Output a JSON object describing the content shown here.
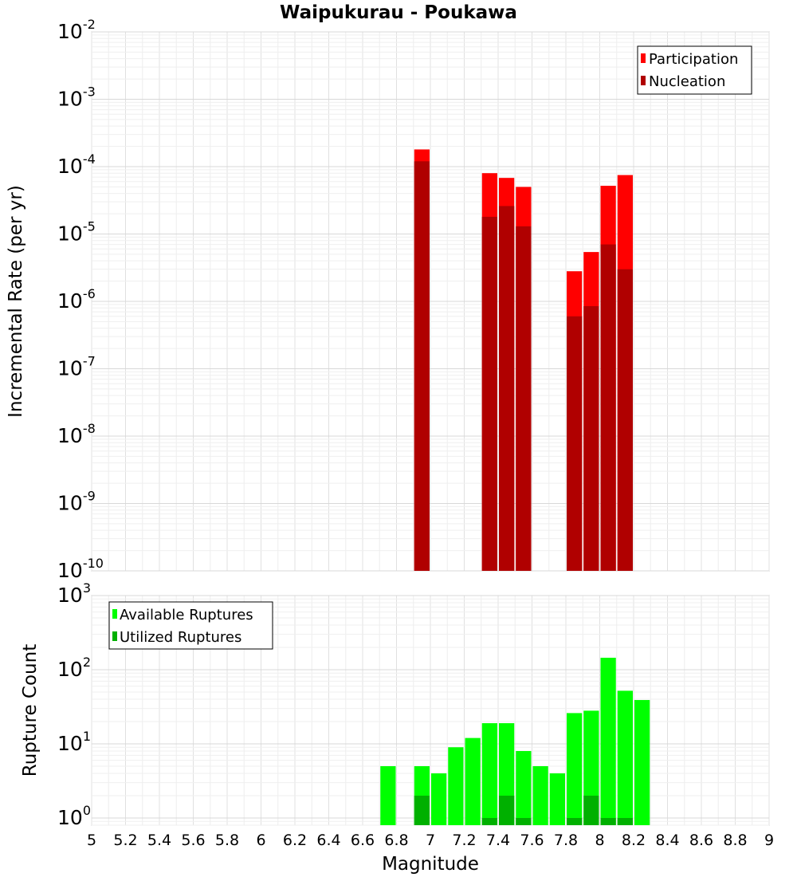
{
  "chart_data": {
    "title": "Waipukurau - Poukawa",
    "xlabel": "Magnitude",
    "x_ticks": [
      "5",
      "5.2",
      "5.4",
      "5.6",
      "5.8",
      "6",
      "6.2",
      "6.4",
      "6.6",
      "6.8",
      "7",
      "7.2",
      "7.4",
      "7.6",
      "7.8",
      "8",
      "8.2",
      "8.4",
      "8.6",
      "8.8",
      "9"
    ],
    "xlim": [
      5,
      9
    ],
    "bar_width": 0.1,
    "panels": [
      {
        "type": "bar",
        "ylabel": "Incremental Rate (per yr)",
        "yscale": "log",
        "ylim": [
          1e-10,
          0.01
        ],
        "y_ticks": [
          {
            "base": "10",
            "exp": "-2"
          },
          {
            "base": "10",
            "exp": "-3"
          },
          {
            "base": "10",
            "exp": "-4"
          },
          {
            "base": "10",
            "exp": "-5"
          },
          {
            "base": "10",
            "exp": "-6"
          },
          {
            "base": "10",
            "exp": "-7"
          },
          {
            "base": "10",
            "exp": "-8"
          },
          {
            "base": "10",
            "exp": "-9"
          },
          {
            "base": "10",
            "exp": "-10"
          }
        ],
        "legend_position": "top-right",
        "series": [
          {
            "name": "Participation",
            "color": "#ff0000",
            "x": [
              6.95,
              7.35,
              7.45,
              7.55,
              7.85,
              7.95,
              8.05,
              8.15
            ],
            "values": [
              0.00018,
              8e-05,
              6.8e-05,
              5e-05,
              2.8e-06,
              5.4e-06,
              5.2e-05,
              7.5e-05
            ]
          },
          {
            "name": "Nucleation",
            "color": "#b00000",
            "x": [
              6.95,
              7.35,
              7.45,
              7.55,
              7.85,
              7.95,
              8.05,
              8.15
            ],
            "values": [
              0.00012,
              1.8e-05,
              2.6e-05,
              1.3e-05,
              6e-07,
              8.5e-07,
              7e-06,
              3e-06
            ]
          }
        ]
      },
      {
        "type": "bar",
        "ylabel": "Rupture Count",
        "yscale": "log",
        "ylim": [
          0.8,
          1000
        ],
        "y_ticks": [
          {
            "base": "10",
            "exp": "3"
          },
          {
            "base": "10",
            "exp": "2"
          },
          {
            "base": "10",
            "exp": "1"
          },
          {
            "base": "10",
            "exp": "0"
          }
        ],
        "legend_position": "top-left",
        "series": [
          {
            "name": "Available Ruptures",
            "color": "#00ff00",
            "x": [
              6.75,
              6.95,
              7.05,
              7.15,
              7.25,
              7.35,
              7.45,
              7.55,
              7.65,
              7.75,
              7.85,
              7.95,
              8.05,
              8.15,
              8.25
            ],
            "values": [
              5,
              5,
              4,
              9,
              12,
              19,
              19,
              8,
              5,
              4,
              26,
              28,
              145,
              52,
              39
            ]
          },
          {
            "name": "Utilized Ruptures",
            "color": "#00b000",
            "x": [
              6.95,
              7.35,
              7.45,
              7.55,
              7.85,
              7.95,
              8.05,
              8.15
            ],
            "values": [
              2,
              1,
              2,
              1,
              1,
              2,
              1,
              1
            ]
          }
        ]
      }
    ]
  }
}
